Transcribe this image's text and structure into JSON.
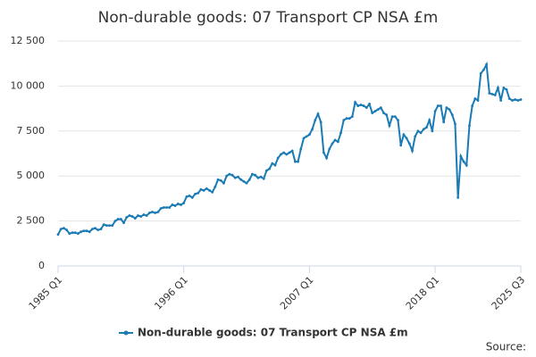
{
  "chart_data": {
    "type": "line",
    "title": "Non-durable goods: 07 Transport CP NSA £m",
    "source_label": "Source:",
    "categories": [
      "1985 Q1",
      null,
      null,
      null,
      null,
      null,
      null,
      null,
      null,
      null,
      null,
      null,
      null,
      null,
      null,
      null,
      null,
      null,
      null,
      null,
      null,
      null,
      null,
      null,
      null,
      null,
      null,
      null,
      null,
      null,
      null,
      null,
      null,
      null,
      null,
      null,
      null,
      null,
      null,
      null,
      null,
      null,
      null,
      null,
      "1996 Q1",
      null,
      null,
      null,
      null,
      null,
      null,
      null,
      null,
      null,
      null,
      null,
      null,
      null,
      null,
      null,
      null,
      null,
      null,
      null,
      null,
      null,
      null,
      null,
      null,
      null,
      null,
      null,
      null,
      null,
      null,
      null,
      null,
      null,
      null,
      null,
      null,
      null,
      null,
      null,
      null,
      null,
      null,
      null,
      "2007 Q1",
      null,
      null,
      null,
      null,
      null,
      null,
      null,
      null,
      null,
      null,
      null,
      null,
      null,
      null,
      null,
      null,
      null,
      null,
      null,
      null,
      null,
      null,
      null,
      null,
      null,
      null,
      null,
      null,
      null,
      null,
      null,
      null,
      null,
      null,
      null,
      null,
      null,
      null,
      null,
      null,
      null,
      null,
      null,
      "2018 Q1",
      null,
      null,
      null,
      null,
      null,
      null,
      null,
      null,
      null,
      null,
      null,
      null,
      null,
      null,
      null,
      null,
      null,
      null,
      null,
      null,
      null,
      null,
      null,
      null,
      null,
      null,
      null,
      null,
      null,
      "2025 Q3"
    ],
    "series": [
      {
        "name": "Non-durable goods: 07 Transport CP NSA £m",
        "color": "#1a7bb5",
        "values": [
          1750,
          2050,
          2100,
          2000,
          1800,
          1850,
          1850,
          1800,
          1900,
          1950,
          1950,
          1900,
          2050,
          2100,
          2000,
          2050,
          2300,
          2250,
          2250,
          2250,
          2500,
          2600,
          2600,
          2400,
          2700,
          2800,
          2750,
          2650,
          2800,
          2750,
          2850,
          2800,
          2950,
          3000,
          2950,
          3000,
          3200,
          3250,
          3250,
          3250,
          3400,
          3350,
          3450,
          3400,
          3500,
          3850,
          3900,
          3800,
          4000,
          4050,
          4250,
          4200,
          4300,
          4200,
          4100,
          4400,
          4800,
          4750,
          4600,
          5000,
          5100,
          5050,
          4900,
          4950,
          4800,
          4700,
          4600,
          4800,
          5100,
          5050,
          4900,
          4950,
          4850,
          5300,
          5400,
          5700,
          5600,
          6000,
          6200,
          6300,
          6200,
          6300,
          6400,
          5800,
          5800,
          6500,
          7100,
          7200,
          7300,
          7600,
          8100,
          8450,
          8000,
          6300,
          6000,
          6500,
          6800,
          7000,
          6900,
          7400,
          8100,
          8200,
          8200,
          8300,
          9100,
          8900,
          8950,
          8900,
          8800,
          9000,
          8500,
          8600,
          8700,
          8800,
          8500,
          8400,
          7800,
          8300,
          8300,
          8100,
          6700,
          7300,
          7100,
          6800,
          6400,
          7200,
          7500,
          7400,
          7600,
          7700,
          8100,
          7500,
          8600,
          8900,
          8900,
          8000,
          8800,
          8700,
          8400,
          7900,
          3800,
          6100,
          5800,
          5600,
          7800,
          8900,
          9300,
          9200,
          10700,
          10900,
          11200,
          9600,
          9550,
          9500,
          9900,
          9200,
          9900,
          9800,
          9300,
          9200,
          9250,
          9200,
          9250
        ]
      }
    ],
    "ylim": [
      0,
      12500
    ],
    "yticks": [
      0,
      {
        "value": 2500,
        "label": "2 500"
      },
      {
        "value": 5000,
        "label": "5 000"
      },
      {
        "value": 7500,
        "label": "7 500"
      },
      {
        "value": 10000,
        "label": "10 000"
      },
      {
        "value": 12500,
        "label": "12 500"
      }
    ],
    "grid": true
  }
}
